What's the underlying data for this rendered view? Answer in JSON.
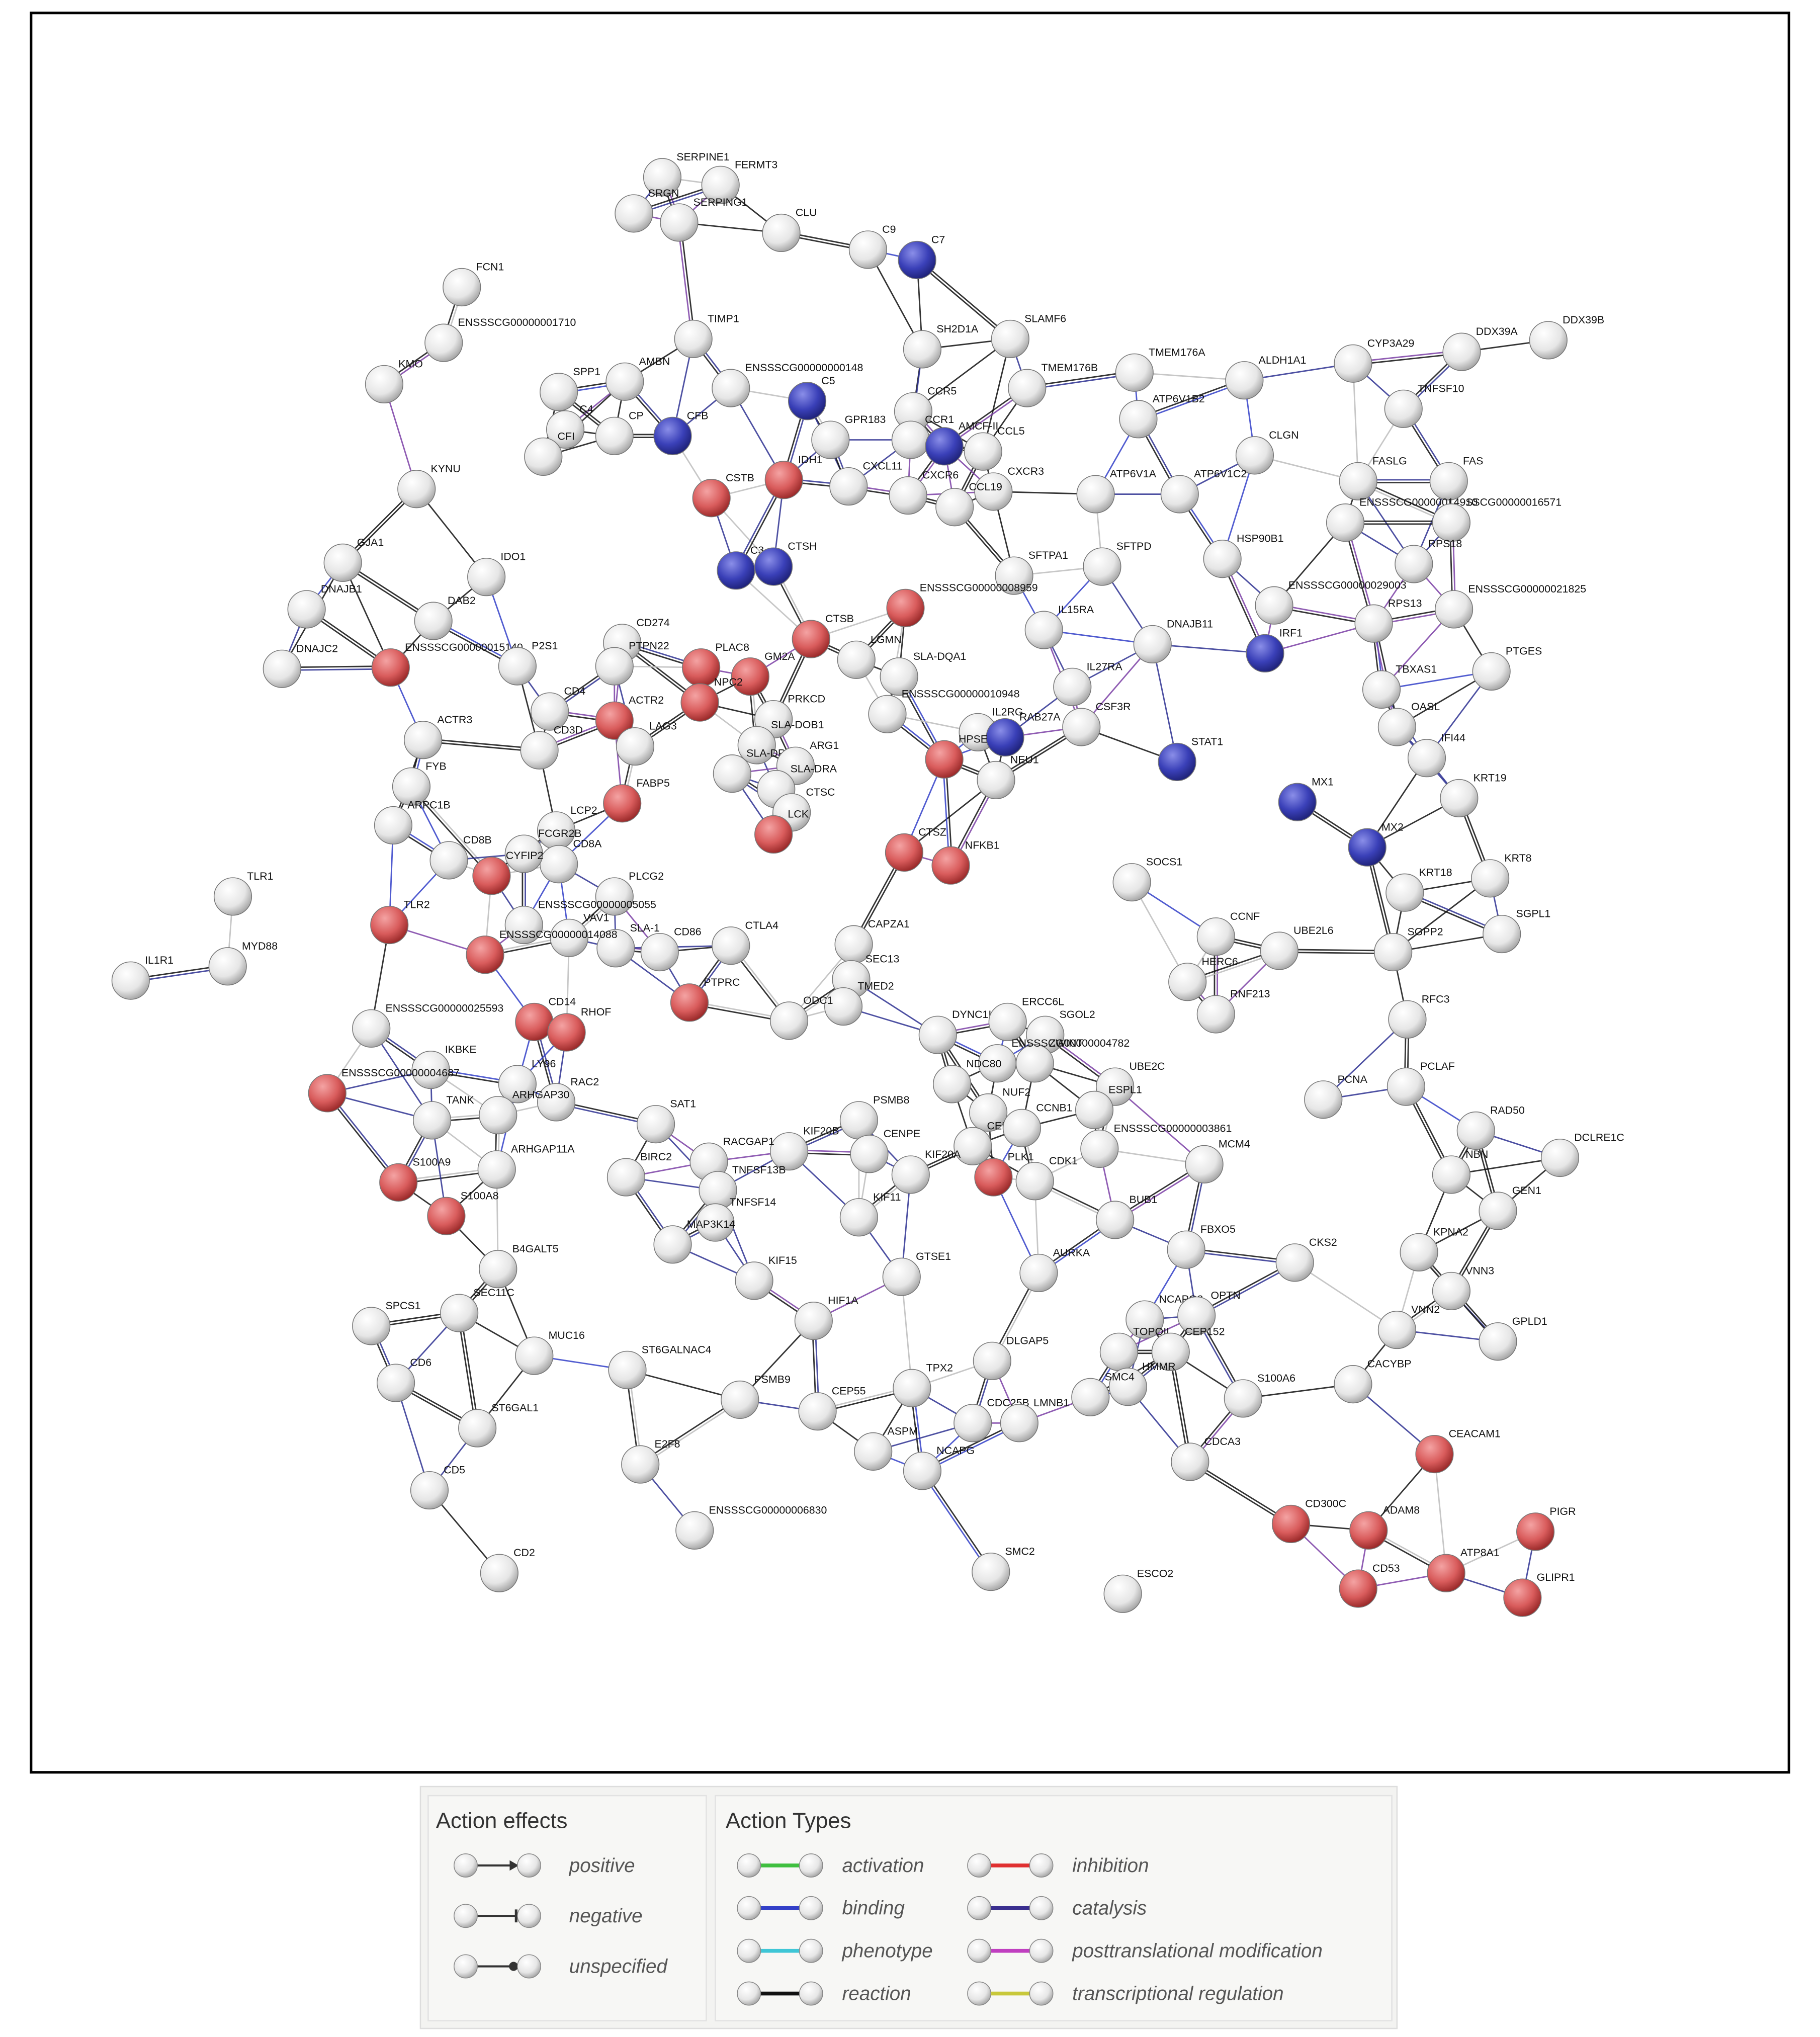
{
  "nodes": [
    {
      "label": "SERPINE1",
      "color": "white"
    },
    {
      "label": "FERMT3",
      "color": "white"
    },
    {
      "label": "SRGN",
      "color": "white"
    },
    {
      "label": "SERPING1",
      "color": "white"
    },
    {
      "label": "CLU",
      "color": "white"
    },
    {
      "label": "C9",
      "color": "white"
    },
    {
      "label": "C7",
      "color": "blue"
    },
    {
      "label": "FCN1",
      "color": "white"
    },
    {
      "label": "ENSSSCG00000001710",
      "color": "white"
    },
    {
      "label": "TIMP1",
      "color": "white"
    },
    {
      "label": "KMO",
      "color": "white"
    },
    {
      "label": "SH2D1A",
      "color": "white"
    },
    {
      "label": "SLAMF6",
      "color": "white"
    },
    {
      "label": "TMEM176A",
      "color": "white"
    },
    {
      "label": "TMEM176B",
      "color": "white"
    },
    {
      "label": "ALDH1A1",
      "color": "white"
    },
    {
      "label": "CYP3A29",
      "color": "white"
    },
    {
      "label": "DDX39A",
      "color": "white"
    },
    {
      "label": "DDX39B",
      "color": "white"
    },
    {
      "label": "AMBN",
      "color": "white"
    },
    {
      "label": "SPP1",
      "color": "white"
    },
    {
      "label": "ENSSSCG00000000148",
      "color": "white"
    },
    {
      "label": "C5",
      "color": "blue"
    },
    {
      "label": "CFB",
      "color": "blue"
    },
    {
      "label": "C4",
      "color": "white"
    },
    {
      "label": "CP",
      "color": "white"
    },
    {
      "label": "CCR5",
      "color": "white"
    },
    {
      "label": "ATP6V1B2",
      "color": "white"
    },
    {
      "label": "TNFSF10",
      "color": "white"
    },
    {
      "label": "GPR183",
      "color": "white"
    },
    {
      "label": "CCR1",
      "color": "white"
    },
    {
      "label": "AMCF-II",
      "color": "blue"
    },
    {
      "label": "CCL5",
      "color": "white"
    },
    {
      "label": "CFI",
      "color": "white"
    },
    {
      "label": "CLGN",
      "color": "white"
    },
    {
      "label": "IDH1",
      "color": "red"
    },
    {
      "label": "CSTB",
      "color": "red"
    },
    {
      "label": "CXCL11",
      "color": "white"
    },
    {
      "label": "CXCR6",
      "color": "white"
    },
    {
      "label": "CXCR3",
      "color": "white"
    },
    {
      "label": "CCL19",
      "color": "white"
    },
    {
      "label": "ATP6V1A",
      "color": "white"
    },
    {
      "label": "ATP6V1C2",
      "color": "white"
    },
    {
      "label": "FASLG",
      "color": "white"
    },
    {
      "label": "FAS",
      "color": "white"
    },
    {
      "label": "KYNU",
      "color": "white"
    },
    {
      "label": "ENSSSCG00000014910",
      "color": "white"
    },
    {
      "label": "SSCG00000016571",
      "color": "white"
    },
    {
      "label": "HSP90B1",
      "color": "white"
    },
    {
      "label": "C3",
      "color": "blue"
    },
    {
      "label": "CTSH",
      "color": "blue"
    },
    {
      "label": "RPS18",
      "color": "white"
    },
    {
      "label": "ENSSSCG00000021825",
      "color": "white"
    },
    {
      "label": "IDO1",
      "color": "white"
    },
    {
      "label": "GJA1",
      "color": "white"
    },
    {
      "label": "DNAJB1",
      "color": "white"
    },
    {
      "label": "SFTPA1",
      "color": "white"
    },
    {
      "label": "SFTPD",
      "color": "white"
    },
    {
      "label": "ENSSSCG00000029003",
      "color": "white"
    },
    {
      "label": "RPS13",
      "color": "white"
    },
    {
      "label": "DAB2",
      "color": "white"
    },
    {
      "label": "ENSSSCG00000008959",
      "color": "red"
    },
    {
      "label": "IL15RA",
      "color": "white"
    },
    {
      "label": "CD274",
      "color": "white"
    },
    {
      "label": "CTSB",
      "color": "red"
    },
    {
      "label": "DNAJB11",
      "color": "white"
    },
    {
      "label": "IRF1",
      "color": "blue"
    },
    {
      "label": "PTGES",
      "color": "white"
    },
    {
      "label": "ENSSSCG00000015140",
      "color": "red"
    },
    {
      "label": "P2S1",
      "color": "white"
    },
    {
      "label": "DNAJC2",
      "color": "white"
    },
    {
      "label": "PTPN22",
      "color": "white"
    },
    {
      "label": "PLAC8",
      "color": "red"
    },
    {
      "label": "GM2A",
      "color": "red"
    },
    {
      "label": "LGMN",
      "color": "white"
    },
    {
      "label": "SLA-DQA1",
      "color": "white"
    },
    {
      "label": "TBXAS1",
      "color": "white"
    },
    {
      "label": "IL27RA",
      "color": "white"
    },
    {
      "label": "ENSSSCG00000010948",
      "color": "white"
    },
    {
      "label": "CD4",
      "color": "white"
    },
    {
      "label": "ACTR2",
      "color": "red"
    },
    {
      "label": "NPC2",
      "color": "red"
    },
    {
      "label": "OASL",
      "color": "white"
    },
    {
      "label": "ACTR3",
      "color": "white"
    },
    {
      "label": "LAG3",
      "color": "white"
    },
    {
      "label": "IL2RG",
      "color": "white"
    },
    {
      "label": "RAB27A",
      "color": "blue"
    },
    {
      "label": "CSF3R",
      "color": "white"
    },
    {
      "label": "CD3D",
      "color": "white"
    },
    {
      "label": "PRKCD",
      "color": "white"
    },
    {
      "label": "HPSE",
      "color": "red"
    },
    {
      "label": "IFI44",
      "color": "white"
    },
    {
      "label": "SLA-DOB1",
      "color": "white"
    },
    {
      "label": "SLA-DRB1",
      "color": "white"
    },
    {
      "label": "ARG1",
      "color": "white"
    },
    {
      "label": "STAT1",
      "color": "blue"
    },
    {
      "label": "NEU1",
      "color": "white"
    },
    {
      "label": "FYB",
      "color": "white"
    },
    {
      "label": "SLA-DRA",
      "color": "white"
    },
    {
      "label": "FABP5",
      "color": "red"
    },
    {
      "label": "KRT19",
      "color": "white"
    },
    {
      "label": "MX1",
      "color": "blue"
    },
    {
      "label": "ARPC1B",
      "color": "white"
    },
    {
      "label": "LCP2",
      "color": "white"
    },
    {
      "label": "CD8A",
      "color": "white"
    },
    {
      "label": "CTSC",
      "color": "white"
    },
    {
      "label": "LCK",
      "color": "red"
    },
    {
      "label": "CTSZ",
      "color": "red"
    },
    {
      "label": "NFKB1",
      "color": "red"
    },
    {
      "label": "MX2",
      "color": "blue"
    },
    {
      "label": "KRT8",
      "color": "white"
    },
    {
      "label": "CD8B",
      "color": "white"
    },
    {
      "label": "FCGR2B",
      "color": "white"
    },
    {
      "label": "CYFIP2",
      "color": "red"
    },
    {
      "label": "PLCG2",
      "color": "white"
    },
    {
      "label": "TLR1",
      "color": "white"
    },
    {
      "label": "SOCS1",
      "color": "white"
    },
    {
      "label": "KRT18",
      "color": "white"
    },
    {
      "label": "TLR2",
      "color": "red"
    },
    {
      "label": "ENSSSCG00000005055",
      "color": "white"
    },
    {
      "label": "VAV1",
      "color": "white"
    },
    {
      "label": "SLA-1",
      "color": "white"
    },
    {
      "label": "CD86",
      "color": "white"
    },
    {
      "label": "CTLA4",
      "color": "white"
    },
    {
      "label": "CAPZA1",
      "color": "white"
    },
    {
      "label": "CCNF",
      "color": "white"
    },
    {
      "label": "SGPL1",
      "color": "white"
    },
    {
      "label": "MYD88",
      "color": "white"
    },
    {
      "label": "IL1R1",
      "color": "white"
    },
    {
      "label": "ENSSSCG00000014088",
      "color": "red"
    },
    {
      "label": "UBE2L6",
      "color": "white"
    },
    {
      "label": "SGPP2",
      "color": "white"
    },
    {
      "label": "SEC13",
      "color": "white"
    },
    {
      "label": "TMED2",
      "color": "white"
    },
    {
      "label": "HERC6",
      "color": "white"
    },
    {
      "label": "PTPRC",
      "color": "red"
    },
    {
      "label": "RNF213",
      "color": "white"
    },
    {
      "label": "RFC3",
      "color": "white"
    },
    {
      "label": "ENSSSCG00000025593",
      "color": "white"
    },
    {
      "label": "CD14",
      "color": "red"
    },
    {
      "label": "RHOF",
      "color": "red"
    },
    {
      "label": "ODC1",
      "color": "white"
    },
    {
      "label": "DYNC1I1",
      "color": "white"
    },
    {
      "label": "ERCC6L",
      "color": "white"
    },
    {
      "label": "SGOL2",
      "color": "white"
    },
    {
      "label": "ZWINT",
      "color": "white"
    },
    {
      "label": "ENSSSCG00000004782",
      "color": "white"
    },
    {
      "label": "IKBKE",
      "color": "white"
    },
    {
      "label": "ENSSSCG00000004687",
      "color": "red"
    },
    {
      "label": "RAC2",
      "color": "white"
    },
    {
      "label": "UBE2C",
      "color": "white"
    },
    {
      "label": "PCLAF",
      "color": "white"
    },
    {
      "label": "NDC80",
      "color": "white"
    },
    {
      "label": "LY96",
      "color": "white"
    },
    {
      "label": "TANK",
      "color": "white"
    },
    {
      "label": "ARHGAP30",
      "color": "white"
    },
    {
      "label": "PCNA",
      "color": "white"
    },
    {
      "label": "SAT1",
      "color": "white"
    },
    {
      "label": "NUF2",
      "color": "white"
    },
    {
      "label": "ESPL1",
      "color": "white"
    },
    {
      "label": "RAD50",
      "color": "white"
    },
    {
      "label": "PSMB8",
      "color": "white"
    },
    {
      "label": "ENSSSCG00000003861",
      "color": "white"
    },
    {
      "label": "KIF20B",
      "color": "white"
    },
    {
      "label": "CENPE",
      "color": "white"
    },
    {
      "label": "CENPF",
      "color": "white"
    },
    {
      "label": "CCNB1",
      "color": "white"
    },
    {
      "label": "MCM4",
      "color": "white"
    },
    {
      "label": "DCLRE1C",
      "color": "white"
    },
    {
      "label": "ARHGAP11A",
      "color": "white"
    },
    {
      "label": "S100A9",
      "color": "red"
    },
    {
      "label": "RACGAP1",
      "color": "white"
    },
    {
      "label": "BIRC2",
      "color": "white"
    },
    {
      "label": "NBN",
      "color": "white"
    },
    {
      "label": "PLK1",
      "color": "red"
    },
    {
      "label": "TNFSF13B",
      "color": "white"
    },
    {
      "label": "CDK1",
      "color": "white"
    },
    {
      "label": "KIF20A",
      "color": "white"
    },
    {
      "label": "BUB1",
      "color": "white"
    },
    {
      "label": "GEN1",
      "color": "white"
    },
    {
      "label": "S100A8",
      "color": "red"
    },
    {
      "label": "TNFSF14",
      "color": "white"
    },
    {
      "label": "MAP3K14",
      "color": "white"
    },
    {
      "label": "KIF11",
      "color": "white"
    },
    {
      "label": "FBXO5",
      "color": "white"
    },
    {
      "label": "CKS2",
      "color": "white"
    },
    {
      "label": "KPNA2",
      "color": "white"
    },
    {
      "label": "B4GALT5",
      "color": "white"
    },
    {
      "label": "AURKA",
      "color": "white"
    },
    {
      "label": "KIF15",
      "color": "white"
    },
    {
      "label": "VNN3",
      "color": "white"
    },
    {
      "label": "GTSE1",
      "color": "white"
    },
    {
      "label": "HIF1A",
      "color": "white"
    },
    {
      "label": "SPCS1",
      "color": "white"
    },
    {
      "label": "SEC11C",
      "color": "white"
    },
    {
      "label": "NCAPG2",
      "color": "white"
    },
    {
      "label": "OPTN",
      "color": "white"
    },
    {
      "label": "VNN2",
      "color": "white"
    },
    {
      "label": "GPLD1",
      "color": "white"
    },
    {
      "label": "TOPOII",
      "color": "white"
    },
    {
      "label": "CEP152",
      "color": "white"
    },
    {
      "label": "MUC16",
      "color": "white"
    },
    {
      "label": "ST6GALNAC4",
      "color": "white"
    },
    {
      "label": "CD6",
      "color": "white"
    },
    {
      "label": "TPX2",
      "color": "white"
    },
    {
      "label": "HMMR",
      "color": "white"
    },
    {
      "label": "S100A6",
      "color": "white"
    },
    {
      "label": "CACYBP",
      "color": "white"
    },
    {
      "label": "PSMB9",
      "color": "white"
    },
    {
      "label": "SMC4",
      "color": "white"
    },
    {
      "label": "CEP55",
      "color": "white"
    },
    {
      "label": "DLGAP5",
      "color": "white"
    },
    {
      "label": "CDC25B",
      "color": "white"
    },
    {
      "label": "LMNB1",
      "color": "white"
    },
    {
      "label": "ST6GAL1",
      "color": "white"
    },
    {
      "label": "ASPM",
      "color": "white"
    },
    {
      "label": "NCAPG",
      "color": "white"
    },
    {
      "label": "CEACAM1",
      "color": "red"
    },
    {
      "label": "E2F8",
      "color": "white"
    },
    {
      "label": "CD5",
      "color": "white"
    },
    {
      "label": "CDCA3",
      "color": "white"
    },
    {
      "label": "CD300C",
      "color": "red"
    },
    {
      "label": "ADAM8",
      "color": "red"
    },
    {
      "label": "PIGR",
      "color": "red"
    },
    {
      "label": "ENSSSCG00000006830",
      "color": "white"
    },
    {
      "label": "ATP8A1",
      "color": "red"
    },
    {
      "label": "GLIPR1",
      "color": "red"
    },
    {
      "label": "CD53",
      "color": "red"
    },
    {
      "label": "SMC2",
      "color": "white"
    },
    {
      "label": "CD2",
      "color": "white"
    },
    {
      "label": "ESCO2",
      "color": "white"
    }
  ],
  "legend": {
    "effects": {
      "title": "Action effects",
      "items": [
        {
          "label": "positive",
          "end": "arrow"
        },
        {
          "label": "negative",
          "end": "bar"
        },
        {
          "label": "unspecified",
          "end": "dot"
        }
      ]
    },
    "types": {
      "title": "Action Types",
      "items": [
        {
          "label": "activation",
          "color": "#3fbf3f"
        },
        {
          "label": "inhibition",
          "color": "#e03030"
        },
        {
          "label": "binding",
          "color": "#3340c8"
        },
        {
          "label": "catalysis",
          "color": "#3a2f8f"
        },
        {
          "label": "phenotype",
          "color": "#3fc6d6"
        },
        {
          "label": "posttranslational modification",
          "color": "#c03fc0"
        },
        {
          "label": "reaction",
          "color": "#111111"
        },
        {
          "label": "transcriptional regulation",
          "color": "#c8c83a"
        }
      ]
    }
  }
}
